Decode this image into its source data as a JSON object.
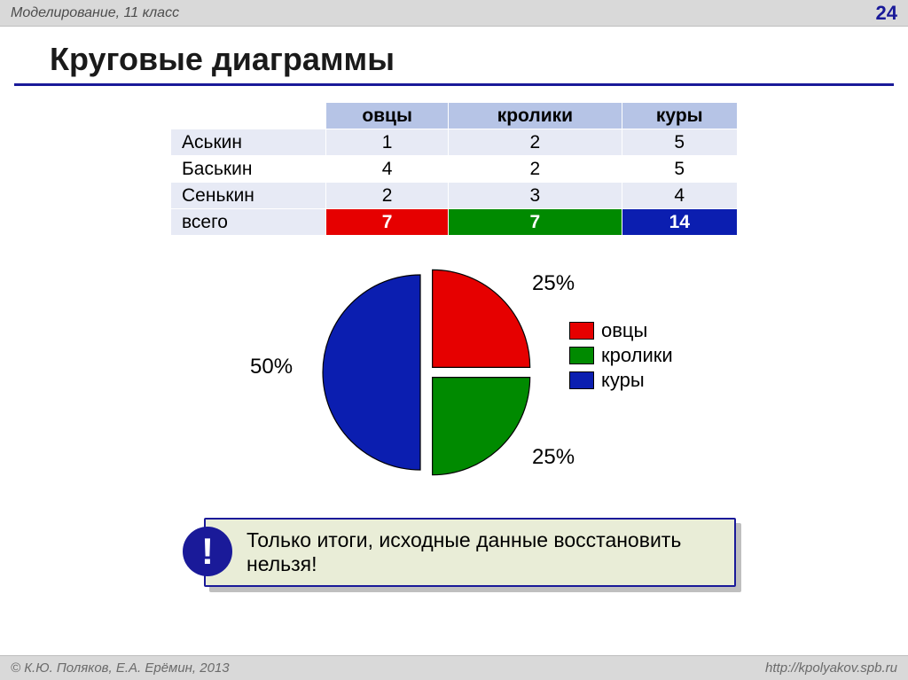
{
  "header": {
    "subject": "Моделирование, 11 класс",
    "page": "24"
  },
  "title": "Круговые диаграммы",
  "table": {
    "columns": [
      "овцы",
      "кролики",
      "куры"
    ],
    "rows": [
      {
        "label": "Аськин",
        "vals": [
          "1",
          "2",
          "5"
        ]
      },
      {
        "label": "Баськин",
        "vals": [
          "4",
          "2",
          "5"
        ]
      },
      {
        "label": "Сенькин",
        "vals": [
          "2",
          "3",
          "4"
        ]
      }
    ],
    "total_label": "всего",
    "totals": [
      "7",
      "7",
      "14"
    ],
    "total_colors": [
      "#e60000",
      "#008a00",
      "#0b1eb0"
    ],
    "header_bg": "#b6c4e6",
    "row_alt_bg_a": "#e7eaf5",
    "row_alt_bg_b": "#ffffff"
  },
  "pie": {
    "type": "pie",
    "radius": 110,
    "explode": 8,
    "slices": [
      {
        "name": "овцы",
        "value": 25,
        "color": "#e60000",
        "label": "25%"
      },
      {
        "name": "кролики",
        "value": 25,
        "color": "#008a00",
        "label": "25%"
      },
      {
        "name": "куры",
        "value": 50,
        "color": "#0b1eb0",
        "label": "50%"
      }
    ],
    "stroke": "#000000",
    "stroke_width": 1.2,
    "label_fontsize": 24,
    "legend_items": [
      {
        "label": "овцы",
        "color": "#e60000"
      },
      {
        "label": "кролики",
        "color": "#008a00"
      },
      {
        "label": "куры",
        "color": "#0b1eb0"
      }
    ]
  },
  "note": {
    "bang": "!",
    "text": "Только итоги, исходные данные восстановить нельзя!",
    "bg": "#e9edd7",
    "border": "#1a1a99"
  },
  "footer": {
    "left": "© К.Ю. Поляков, Е.А. Ерёмин, 2013",
    "right": "http://kpolyakov.spb.ru"
  }
}
